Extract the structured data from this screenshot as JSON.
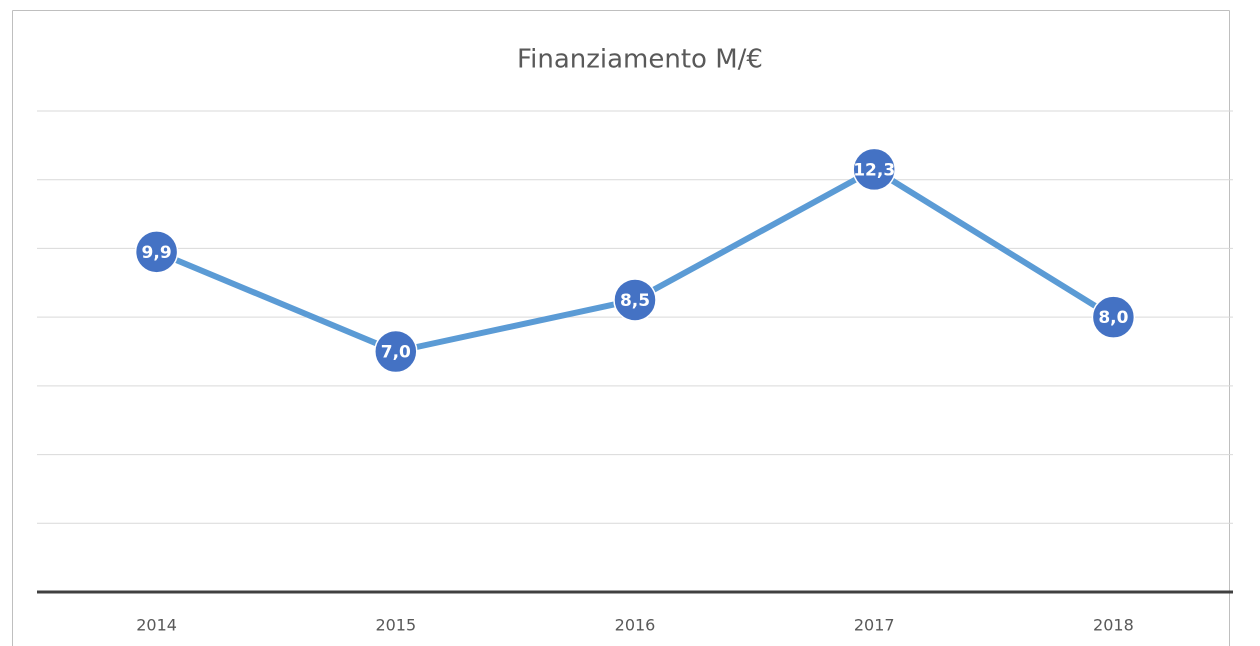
{
  "chart_data": {
    "type": "line",
    "title": "Finanziamento M/€",
    "categories": [
      "2014",
      "2015",
      "2016",
      "2017",
      "2018"
    ],
    "values": [
      9.9,
      7.0,
      8.5,
      12.3,
      8.0
    ],
    "value_labels": [
      "9,9",
      "7,0",
      "8,5",
      "12,3",
      "8,0"
    ],
    "color": "#5b9bd5",
    "marker_color": "#4472c4",
    "ylim": [
      0,
      14
    ],
    "yticks": [
      0,
      2,
      4,
      6,
      8,
      10,
      12,
      14
    ],
    "grid": true
  }
}
